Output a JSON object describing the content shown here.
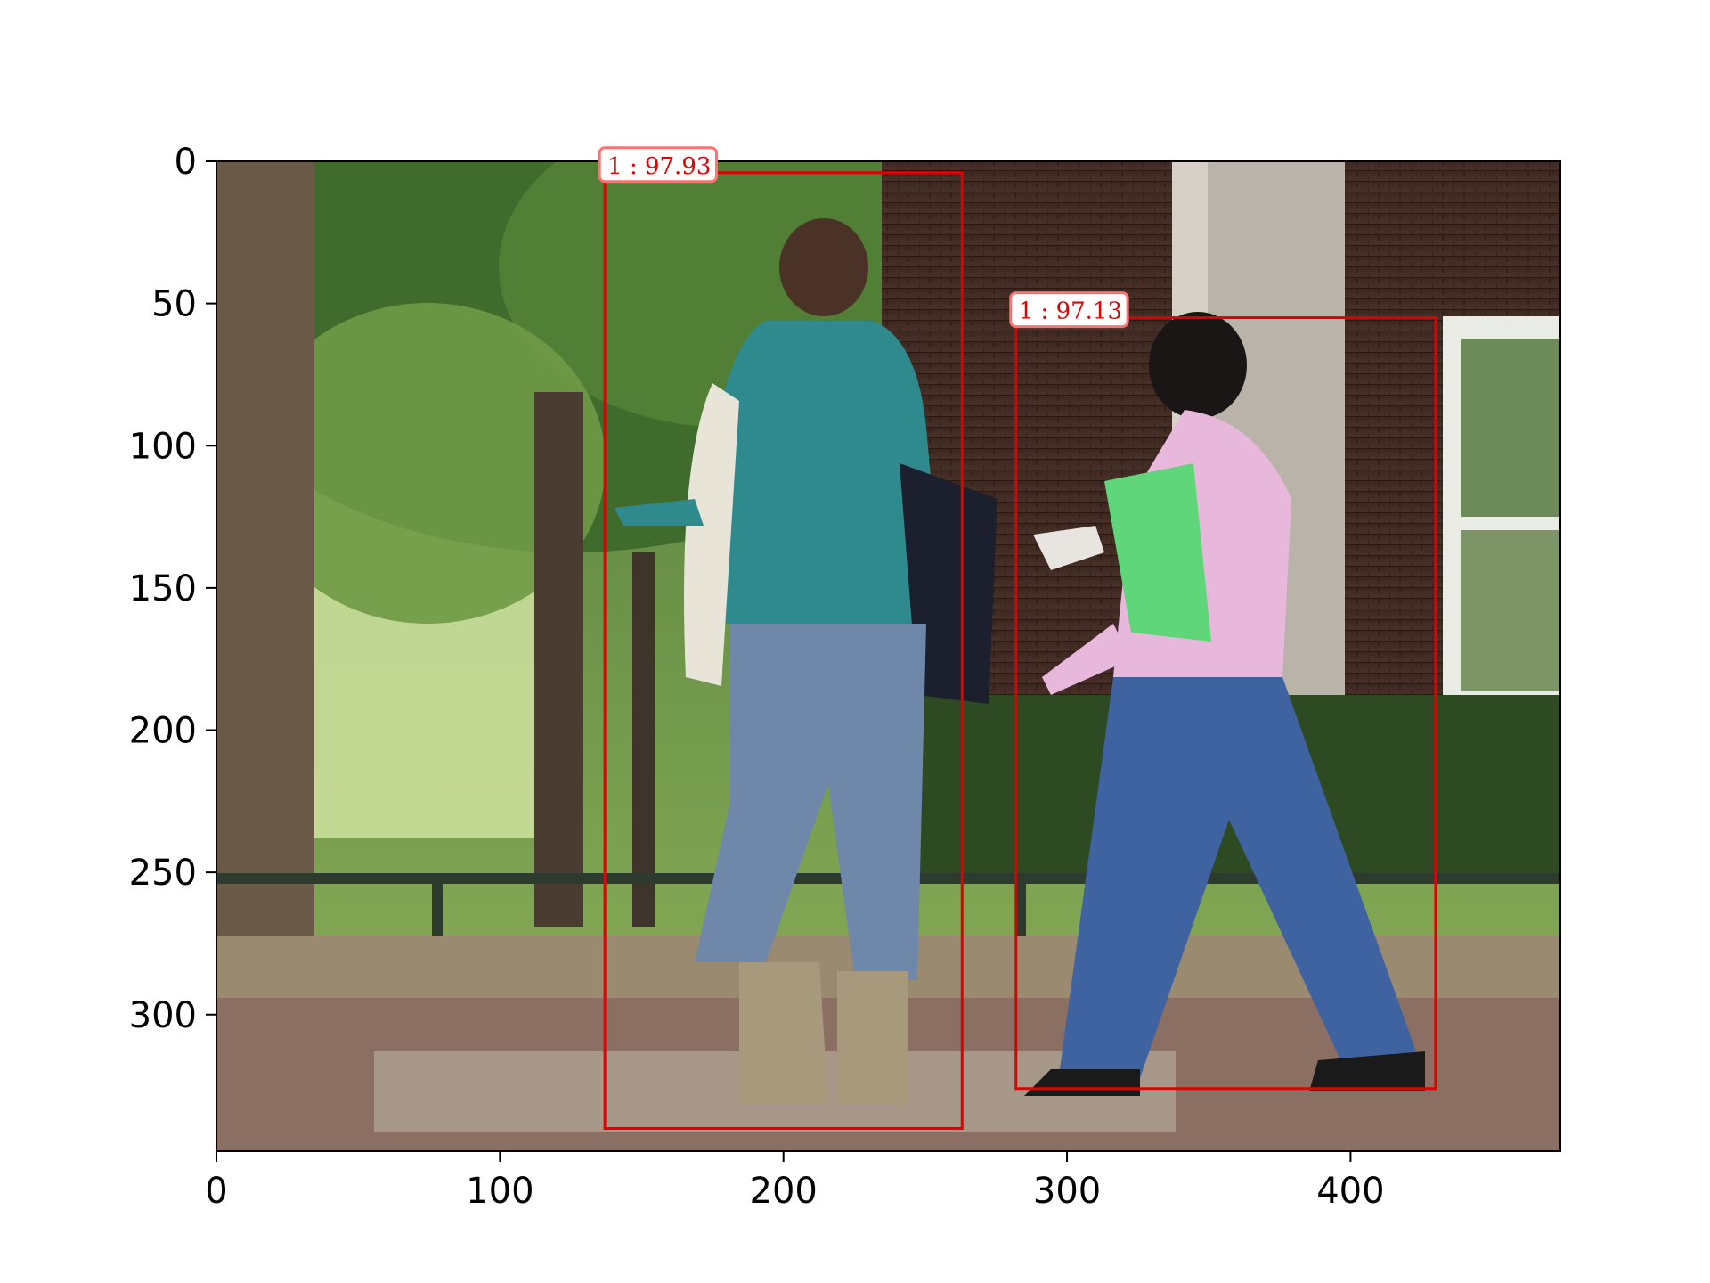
{
  "image": {
    "width": 474,
    "height": 348,
    "description_icon": "photo-street-two-pedestrians"
  },
  "axes": {
    "x_ticks": [
      0,
      100,
      200,
      300,
      400
    ],
    "y_ticks": [
      0,
      50,
      100,
      150,
      200,
      250,
      300
    ],
    "xlim": [
      0,
      474
    ],
    "ylim": [
      348,
      0
    ]
  },
  "detections": [
    {
      "class_id": "1",
      "score": "97.93",
      "label": "1 : 97.93",
      "x1": 137,
      "y1": 4,
      "x2": 263,
      "y2": 340
    },
    {
      "class_id": "1",
      "score": "97.13",
      "label": "1 : 97.13",
      "x1": 282,
      "y1": 55,
      "x2": 430,
      "y2": 326
    }
  ],
  "colors": {
    "box": "#e00000",
    "label_border": "#ff7070",
    "frame": "#000000"
  }
}
